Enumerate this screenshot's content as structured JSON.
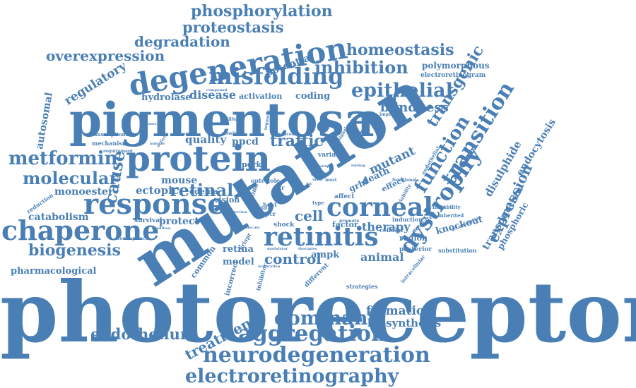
{
  "colors": {
    "word": "#4a7fb5",
    "background": "#ffffff"
  },
  "words": {
    "photoreceptor": "photoreceptor",
    "mutation": "mutation",
    "pigmentosa": "pigmentosa",
    "protein": "protein",
    "degeneration": "degeneration",
    "misfolding": "misfolding",
    "response": "response",
    "chaperone": "chaperone",
    "corneal": "corneal",
    "retinitis": "retinitis",
    "dystrophy": "dystrophy",
    "aggregation": "aggregation",
    "neurodegeneration": "neurodegeneration",
    "electroretinography": "electroretinography",
    "metformin": "metformin",
    "molecular": "molecular",
    "biogenesis": "biogenesis",
    "endothelium": "endothelium",
    "dominant": "dominant",
    "formation": "formation",
    "biosynthesis": "biosynthesis",
    "treatment": "treatment",
    "epithelial": "epithelial",
    "inhibition": "inhibition",
    "homeostasis": "homeostasis",
    "phosphorylation": "phosphorylation",
    "proteostasis": "proteostasis",
    "degradation": "degradation",
    "overexpression": "overexpression",
    "regulatory": "regulatory",
    "blindness": "blindness",
    "transgenic": "transgenic",
    "transition": "transition",
    "function": "function",
    "expression": "expression",
    "disulphide": "disulphide",
    "endocytosis": "endocytosis",
    "retinal": "retinal",
    "cause": "cause",
    "traffic": "traffic",
    "control": "control",
    "therapy": "therapy",
    "cell": "cell",
    "mutant": "mutant",
    "death": "death",
    "potential": "potential",
    "polymorphous": "polymorphous",
    "electroretinogram": "electroretinogram",
    "hydrolase": "hydrolase",
    "disease": "disease",
    "activation": "activation",
    "coding": "coding",
    "autosomal": "autosomal",
    "quality": "quality",
    "ppcd": "ppcd",
    "mouse": "mouse",
    "ectopic": "ectopic",
    "protect": "protect",
    "monoester": "monoester",
    "catabolism": "catabolism",
    "pharmacological": "pharmacological",
    "transduction": "transduction",
    "knockout": "knockout",
    "phosphoric": "phosphoric",
    "animal": "animal",
    "ampk": "ampk",
    "retina": "retina",
    "model": "model",
    "region": "region",
    "posterior": "posterior",
    "grhl": "grhl",
    "factor": "factor",
    "perk": "perk",
    "edema": "edema",
    "vision": "vision",
    "survival": "survival",
    "common": "common",
    "incorrect": "incorrect",
    "inhibitor": "inhibitor",
    "different": "different",
    "strategies": "strategies",
    "shock": "shock",
    "heat": "heat",
    "variant": "variant",
    "effect": "effect",
    "affect": "affect",
    "transcriptional": "transcriptional",
    "mechanism": "mechanism",
    "requirement": "requirement",
    "reduction": "reduction",
    "consequence": "consequence",
    "induction": "induction",
    "mediated": "mediated",
    "substitution": "substitution",
    "instability": "instability",
    "inherited": "inherited",
    "accumulation": "accumulation",
    "intracellular": "intracellular",
    "viability": "viability",
    "endothelial": "endothelial",
    "important": "important",
    "functional": "functional",
    "segment": "segment",
    "induced": "induced",
    "sensitive": "sensitive",
    "facilitate": "facilitate",
    "dysfunction": "dysfunction",
    "activity": "activity",
    "cellular": "cellular",
    "promote": "promote",
    "outer": "outer",
    "role": "role",
    "str": "str",
    "bond": "bond",
    "gpcr": "gpcr",
    "data": "data",
    "type": "type",
    "most": "most",
    "unique": "unique",
    "visual": "visual",
    "many": "many",
    "rat": "rat",
    "signal": "signal",
    "folding": "folding",
    "crispr": "crispr",
    "inducer": "inducer",
    "condition": "condition",
    "injection": "injection",
    "molecule": "molecule",
    "therapies": "therapies",
    "modulator": "modulator",
    "maturation": "maturation",
    "compound": "compound",
    "contribute": "contribute"
  }
}
